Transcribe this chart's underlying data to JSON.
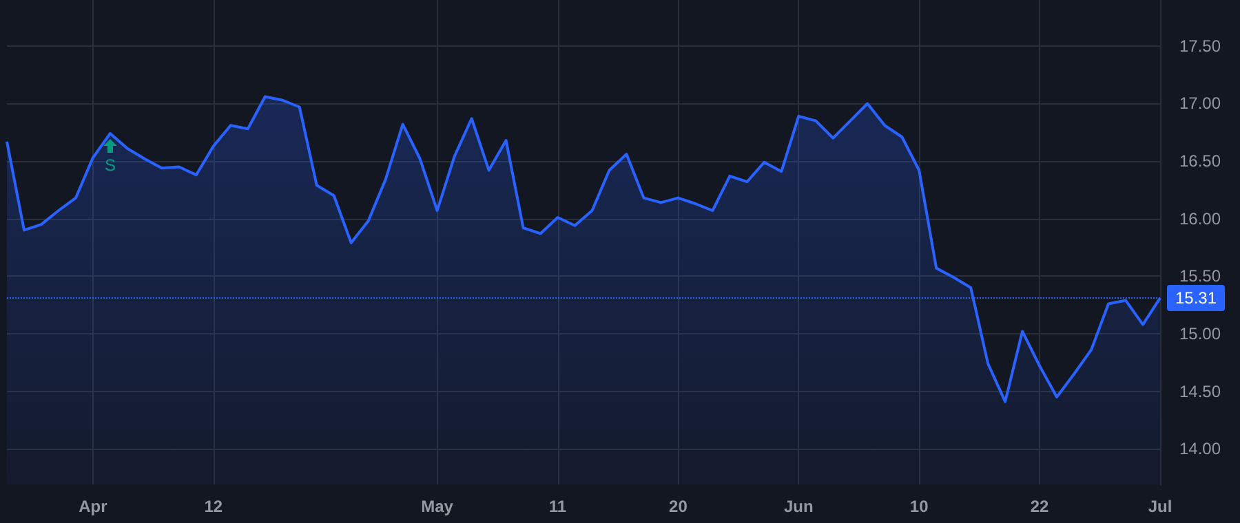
{
  "chart_data": {
    "type": "area",
    "categories": [
      null,
      null,
      null,
      null,
      null,
      "Apr",
      null,
      null,
      null,
      null,
      null,
      null,
      "12",
      null,
      null,
      null,
      null,
      null,
      null,
      null,
      null,
      null,
      null,
      null,
      null,
      "May",
      null,
      null,
      null,
      null,
      null,
      null,
      "11",
      null,
      null,
      null,
      null,
      null,
      null,
      "20",
      null,
      null,
      null,
      null,
      null,
      null,
      "Jun",
      null,
      null,
      null,
      null,
      null,
      null,
      "10",
      null,
      null,
      null,
      null,
      null,
      null,
      "22",
      null,
      null,
      null,
      null,
      null,
      null,
      "Jul"
    ],
    "series": [
      {
        "color": "#2962ff",
        "values": [
          16.67,
          15.9,
          15.95,
          16.07,
          16.18,
          16.53,
          16.74,
          16.61,
          16.52,
          16.44,
          16.45,
          16.38,
          16.63,
          16.81,
          16.78,
          17.06,
          17.03,
          16.97,
          16.29,
          16.2,
          15.79,
          15.98,
          16.34,
          16.82,
          16.52,
          16.07,
          16.54,
          16.87,
          16.42,
          16.68,
          15.92,
          15.87,
          16.01,
          15.94,
          16.07,
          16.42,
          16.56,
          16.18,
          16.14,
          16.18,
          16.13,
          16.07,
          16.37,
          16.32,
          16.49,
          16.41,
          16.89,
          16.85,
          16.7,
          16.85,
          17.0,
          16.81,
          16.71,
          16.42,
          15.57,
          15.49,
          15.4,
          14.74,
          14.41,
          15.02,
          14.72,
          14.45,
          14.65,
          14.86,
          15.26,
          15.29,
          15.08,
          15.31
        ]
      }
    ],
    "ylim": [
      13.69,
      17.9
    ],
    "yticks": [
      {
        "value": 14,
        "label": "14.00"
      },
      {
        "value": 14.5,
        "label": "14.50"
      },
      {
        "value": 15,
        "label": "15.00"
      },
      {
        "value": 15.5,
        "label": "15.50"
      },
      {
        "value": 16,
        "label": "16.00"
      },
      {
        "value": 16.5,
        "label": "16.50"
      },
      {
        "value": 17,
        "label": "17.00"
      },
      {
        "value": 17.5,
        "label": "17.50"
      }
    ],
    "ref_lines": [
      {
        "axis": "y",
        "value": 15.31,
        "label": "15.31",
        "color": "#2962ff",
        "line_style": "dotted"
      }
    ],
    "annotations": [
      "S"
    ],
    "grid": true,
    "marker": "none",
    "line_style": "solid"
  }
}
